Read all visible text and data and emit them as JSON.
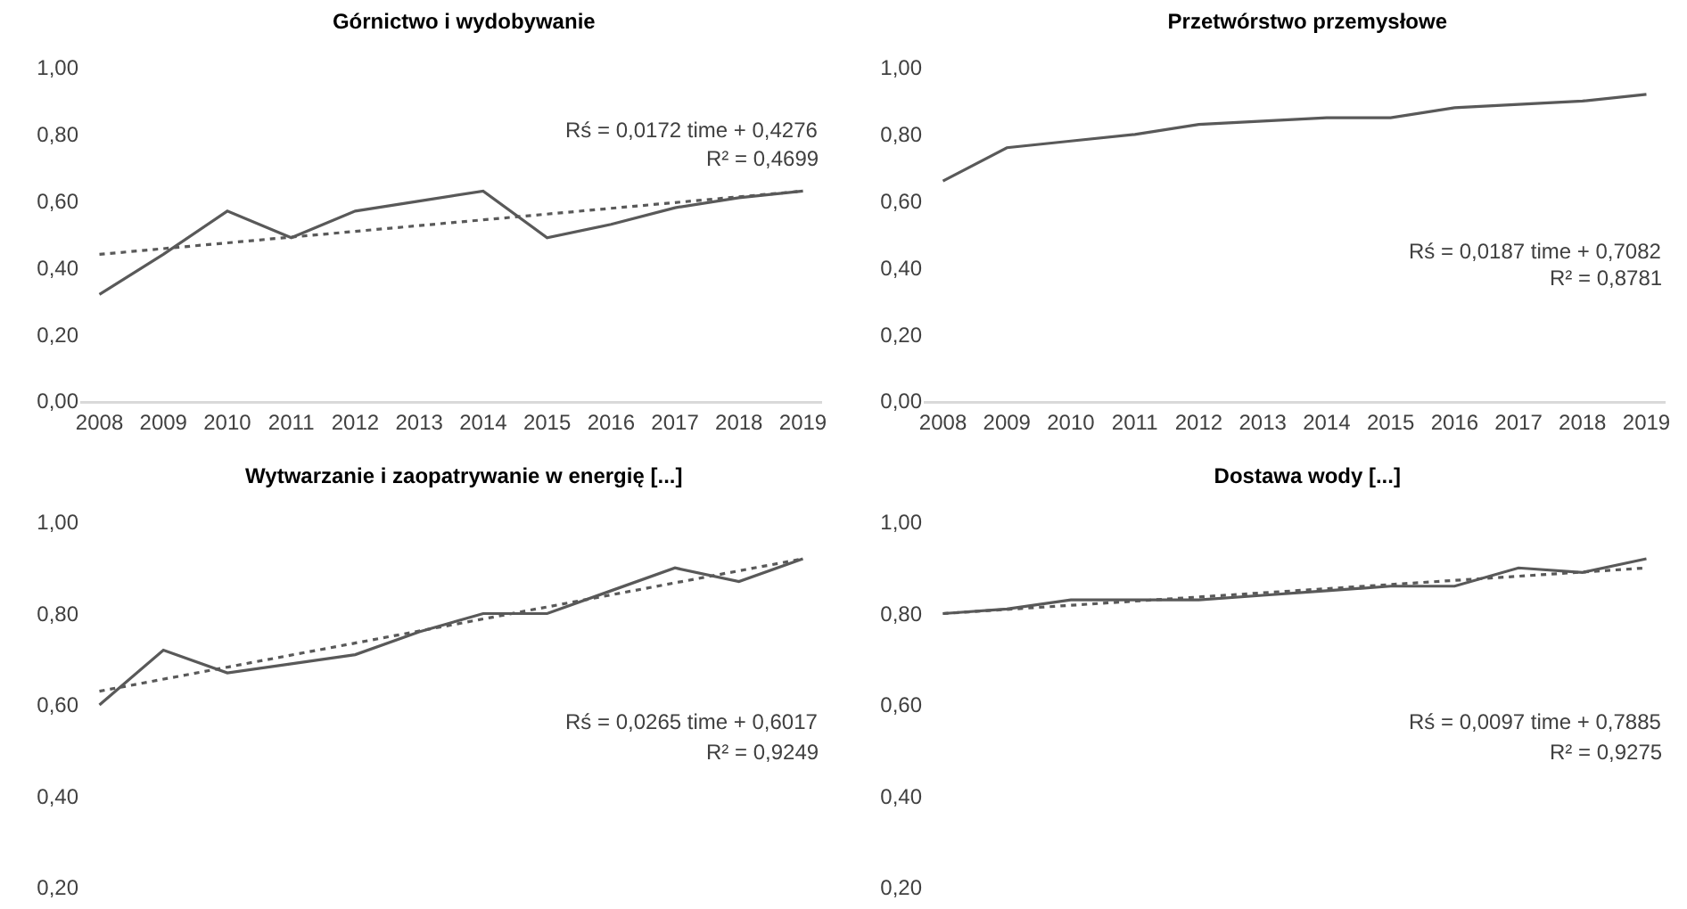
{
  "chart_data": [
    {
      "type": "line",
      "title": "Górnictwo i wydobywanie",
      "categories": [
        "2008",
        "2009",
        "2010",
        "2011",
        "2012",
        "2013",
        "2014",
        "2015",
        "2016",
        "2017",
        "2018",
        "2019"
      ],
      "series": [
        {
          "color": "#595959",
          "values": [
            0.32,
            0.44,
            0.57,
            0.49,
            0.57,
            0.6,
            0.63,
            0.49,
            0.53,
            0.58,
            0.61,
            0.63
          ]
        },
        {
          "type": "line",
          "line_style": "dotted",
          "color": "#595959",
          "values": [
            0.44,
            null,
            null,
            null,
            null,
            null,
            null,
            null,
            null,
            null,
            null,
            0.63
          ]
        }
      ],
      "ylim": [
        0,
        1
      ],
      "yticks": [
        {
          "value": 0,
          "label": "0,00"
        },
        {
          "value": 0.2,
          "label": "0,20"
        },
        {
          "value": 0.4,
          "label": "0,40"
        },
        {
          "value": 0.6,
          "label": "0,60"
        },
        {
          "value": 0.8,
          "label": "0,80"
        },
        {
          "value": 1,
          "label": "1,00"
        }
      ],
      "annotations": [
        "Rś = 0,0172 time + 0,4276",
        "R² = 0,4699"
      ],
      "grid": false,
      "line_style": "solid",
      "marker": "none"
    },
    {
      "type": "line",
      "title": "Przetwórstwo przemysłowe",
      "categories": [
        "2008",
        "2009",
        "2010",
        "2011",
        "2012",
        "2013",
        "2014",
        "2015",
        "2016",
        "2017",
        "2018",
        "2019"
      ],
      "series": [
        {
          "color": "#595959",
          "values": [
            0.66,
            0.76,
            0.78,
            0.8,
            0.83,
            0.84,
            0.85,
            0.85,
            0.88,
            0.89,
            0.9,
            0.92
          ]
        }
      ],
      "ylim": [
        0,
        1
      ],
      "yticks": [
        {
          "value": 0,
          "label": "0,00"
        },
        {
          "value": 0.2,
          "label": "0,20"
        },
        {
          "value": 0.4,
          "label": "0,40"
        },
        {
          "value": 0.6,
          "label": "0,60"
        },
        {
          "value": 0.8,
          "label": "0,80"
        },
        {
          "value": 1,
          "label": "1,00"
        }
      ],
      "annotations": [
        "Rś = 0,0187 time + 0,7082",
        "R² = 0,8781"
      ],
      "grid": false,
      "line_style": "solid",
      "marker": "none"
    },
    {
      "type": "line",
      "title": "Wytwarzanie i zaopatrywanie w energię [...]",
      "categories": [
        "2008",
        "2009",
        "2010",
        "2011",
        "2012",
        "2013",
        "2014",
        "2015",
        "2016",
        "2017",
        "2018",
        "2019"
      ],
      "series": [
        {
          "color": "#595959",
          "values": [
            0.6,
            0.72,
            0.67,
            0.69,
            0.71,
            0.76,
            0.8,
            0.8,
            0.85,
            0.9,
            0.87,
            0.92
          ]
        },
        {
          "type": "line",
          "line_style": "dotted",
          "color": "#595959",
          "values": [
            0.63,
            null,
            null,
            null,
            null,
            null,
            null,
            null,
            null,
            null,
            null,
            0.92
          ]
        }
      ],
      "ylim": [
        0.2,
        1
      ],
      "yticks": [
        {
          "value": 0.2,
          "label": "0,20"
        },
        {
          "value": 0.4,
          "label": "0,40"
        },
        {
          "value": 0.6,
          "label": "0,60"
        },
        {
          "value": 0.8,
          "label": "0,80"
        },
        {
          "value": 1,
          "label": "1,00"
        }
      ],
      "annotations": [
        "Rś = 0,0265 time + 0,6017",
        "R² = 0,9249"
      ],
      "grid": false,
      "line_style": "solid",
      "marker": "none",
      "tick_labels": "y"
    },
    {
      "type": "line",
      "title": "Dostawa wody [...]",
      "categories": [
        "2008",
        "2009",
        "2010",
        "2011",
        "2012",
        "2013",
        "2014",
        "2015",
        "2016",
        "2017",
        "2018",
        "2019"
      ],
      "series": [
        {
          "color": "#595959",
          "values": [
            0.8,
            0.81,
            0.83,
            0.83,
            0.83,
            0.84,
            0.85,
            0.86,
            0.86,
            0.9,
            0.89,
            0.92
          ]
        },
        {
          "type": "line",
          "line_style": "dotted",
          "color": "#595959",
          "values": [
            0.8,
            null,
            null,
            null,
            null,
            null,
            null,
            null,
            null,
            null,
            null,
            0.9
          ]
        }
      ],
      "ylim": [
        0.2,
        1
      ],
      "yticks": [
        {
          "value": 0.2,
          "label": "0,20"
        },
        {
          "value": 0.4,
          "label": "0,40"
        },
        {
          "value": 0.6,
          "label": "0,60"
        },
        {
          "value": 0.8,
          "label": "0,80"
        },
        {
          "value": 1,
          "label": "1,00"
        }
      ],
      "annotations": [
        "Rś = 0,0097 time + 0,7885",
        "R² = 0,9275"
      ],
      "grid": false,
      "line_style": "solid",
      "marker": "none",
      "tick_labels": "y"
    }
  ]
}
